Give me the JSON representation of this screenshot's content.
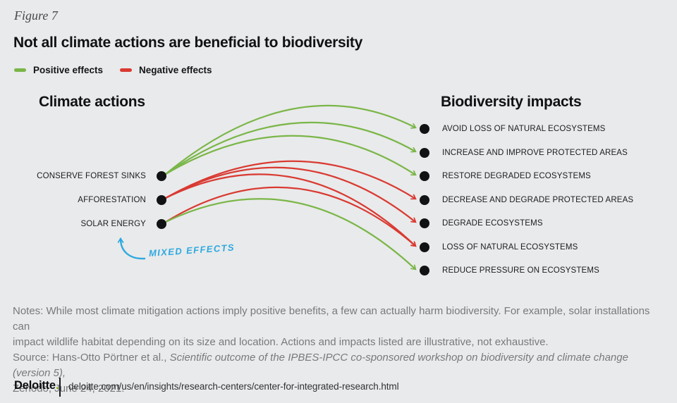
{
  "figure_label": "Figure 7",
  "title": "Not all climate actions are beneficial to biodiversity",
  "legend": {
    "positive_label": "Positive effects",
    "negative_label": "Negative effects"
  },
  "colors": {
    "positive": "#7ab648",
    "negative": "#d93a32",
    "annotation": "#2da9e0",
    "dot": "#111213",
    "background": "#e9eaeb",
    "brand_accent": "#86bc25"
  },
  "diagram": {
    "left_header": "Climate actions",
    "right_header": "Biodiversity impacts",
    "actions": [
      "CONSERVE FOREST SINKS",
      "AFFORESTATION",
      "SOLAR ENERGY"
    ],
    "impacts": [
      "AVOID LOSS OF NATURAL ECOSYSTEMS",
      "INCREASE AND IMPROVE PROTECTED AREAS",
      "RESTORE DEGRADED ECOSYSTEMS",
      "DECREASE AND DEGRADE PROTECTED AREAS",
      "DEGRADE ECOSYSTEMS",
      "LOSS OF NATURAL ECOSYSTEMS",
      "REDUCE PRESSURE ON ECOSYSTEMS"
    ],
    "links": [
      {
        "from": "CONSERVE FOREST SINKS",
        "to": "AVOID LOSS OF NATURAL ECOSYSTEMS",
        "effect": "positive",
        "arc": 95
      },
      {
        "from": "CONSERVE FOREST SINKS",
        "to": "INCREASE AND IMPROVE PROTECTED AREAS",
        "effect": "positive",
        "arc": 119
      },
      {
        "from": "CONSERVE FOREST SINKS",
        "to": "RESTORE DEGRADED ECOSYSTEMS",
        "effect": "positive",
        "arc": 138
      },
      {
        "from": "AFFORESTATION",
        "to": "DECREASE AND DEGRADE PROTECTED AREAS",
        "effect": "negative",
        "arc": 176
      },
      {
        "from": "AFFORESTATION",
        "to": "DEGRADE ECOSYSTEMS",
        "effect": "negative",
        "arc": 180
      },
      {
        "from": "AFFORESTATION",
        "to": "LOSS OF NATURAL ECOSYSTEMS",
        "effect": "negative",
        "arc": 189
      },
      {
        "from": "SOLAR ENERGY",
        "to": "LOSS OF NATURAL ECOSYSTEMS",
        "effect": "negative",
        "arc": 202
      },
      {
        "from": "SOLAR ENERGY",
        "to": "REDUCE PRESSURE ON ECOSYSTEMS",
        "effect": "positive",
        "arc": 225
      }
    ],
    "annotation_label": "MIXED EFFECTS",
    "annotation_target": "SOLAR ENERGY"
  },
  "notes": {
    "line1": "Notes: While most climate mitigation actions imply positive benefits, a few can actually harm biodiversity. For example, solar installations can",
    "line2": "impact wildlife habitat depending on its size and location. Actions and impacts listed are illustrative, not exhaustive.",
    "source_prefix": "Source: Hans-Otto Pörtner et al., ",
    "source_italic": "Scientific outcome of the IPBES-IPCC co-sponsored workshop on biodiversity and climate change (version 5),",
    "source_line2": "Zenodo, June 24, 2021."
  },
  "footer": {
    "brand": "Deloitte",
    "brand_period": ".",
    "url": "deloitte.com/us/en/insights/research-centers/center-for-integrated-research.html"
  }
}
